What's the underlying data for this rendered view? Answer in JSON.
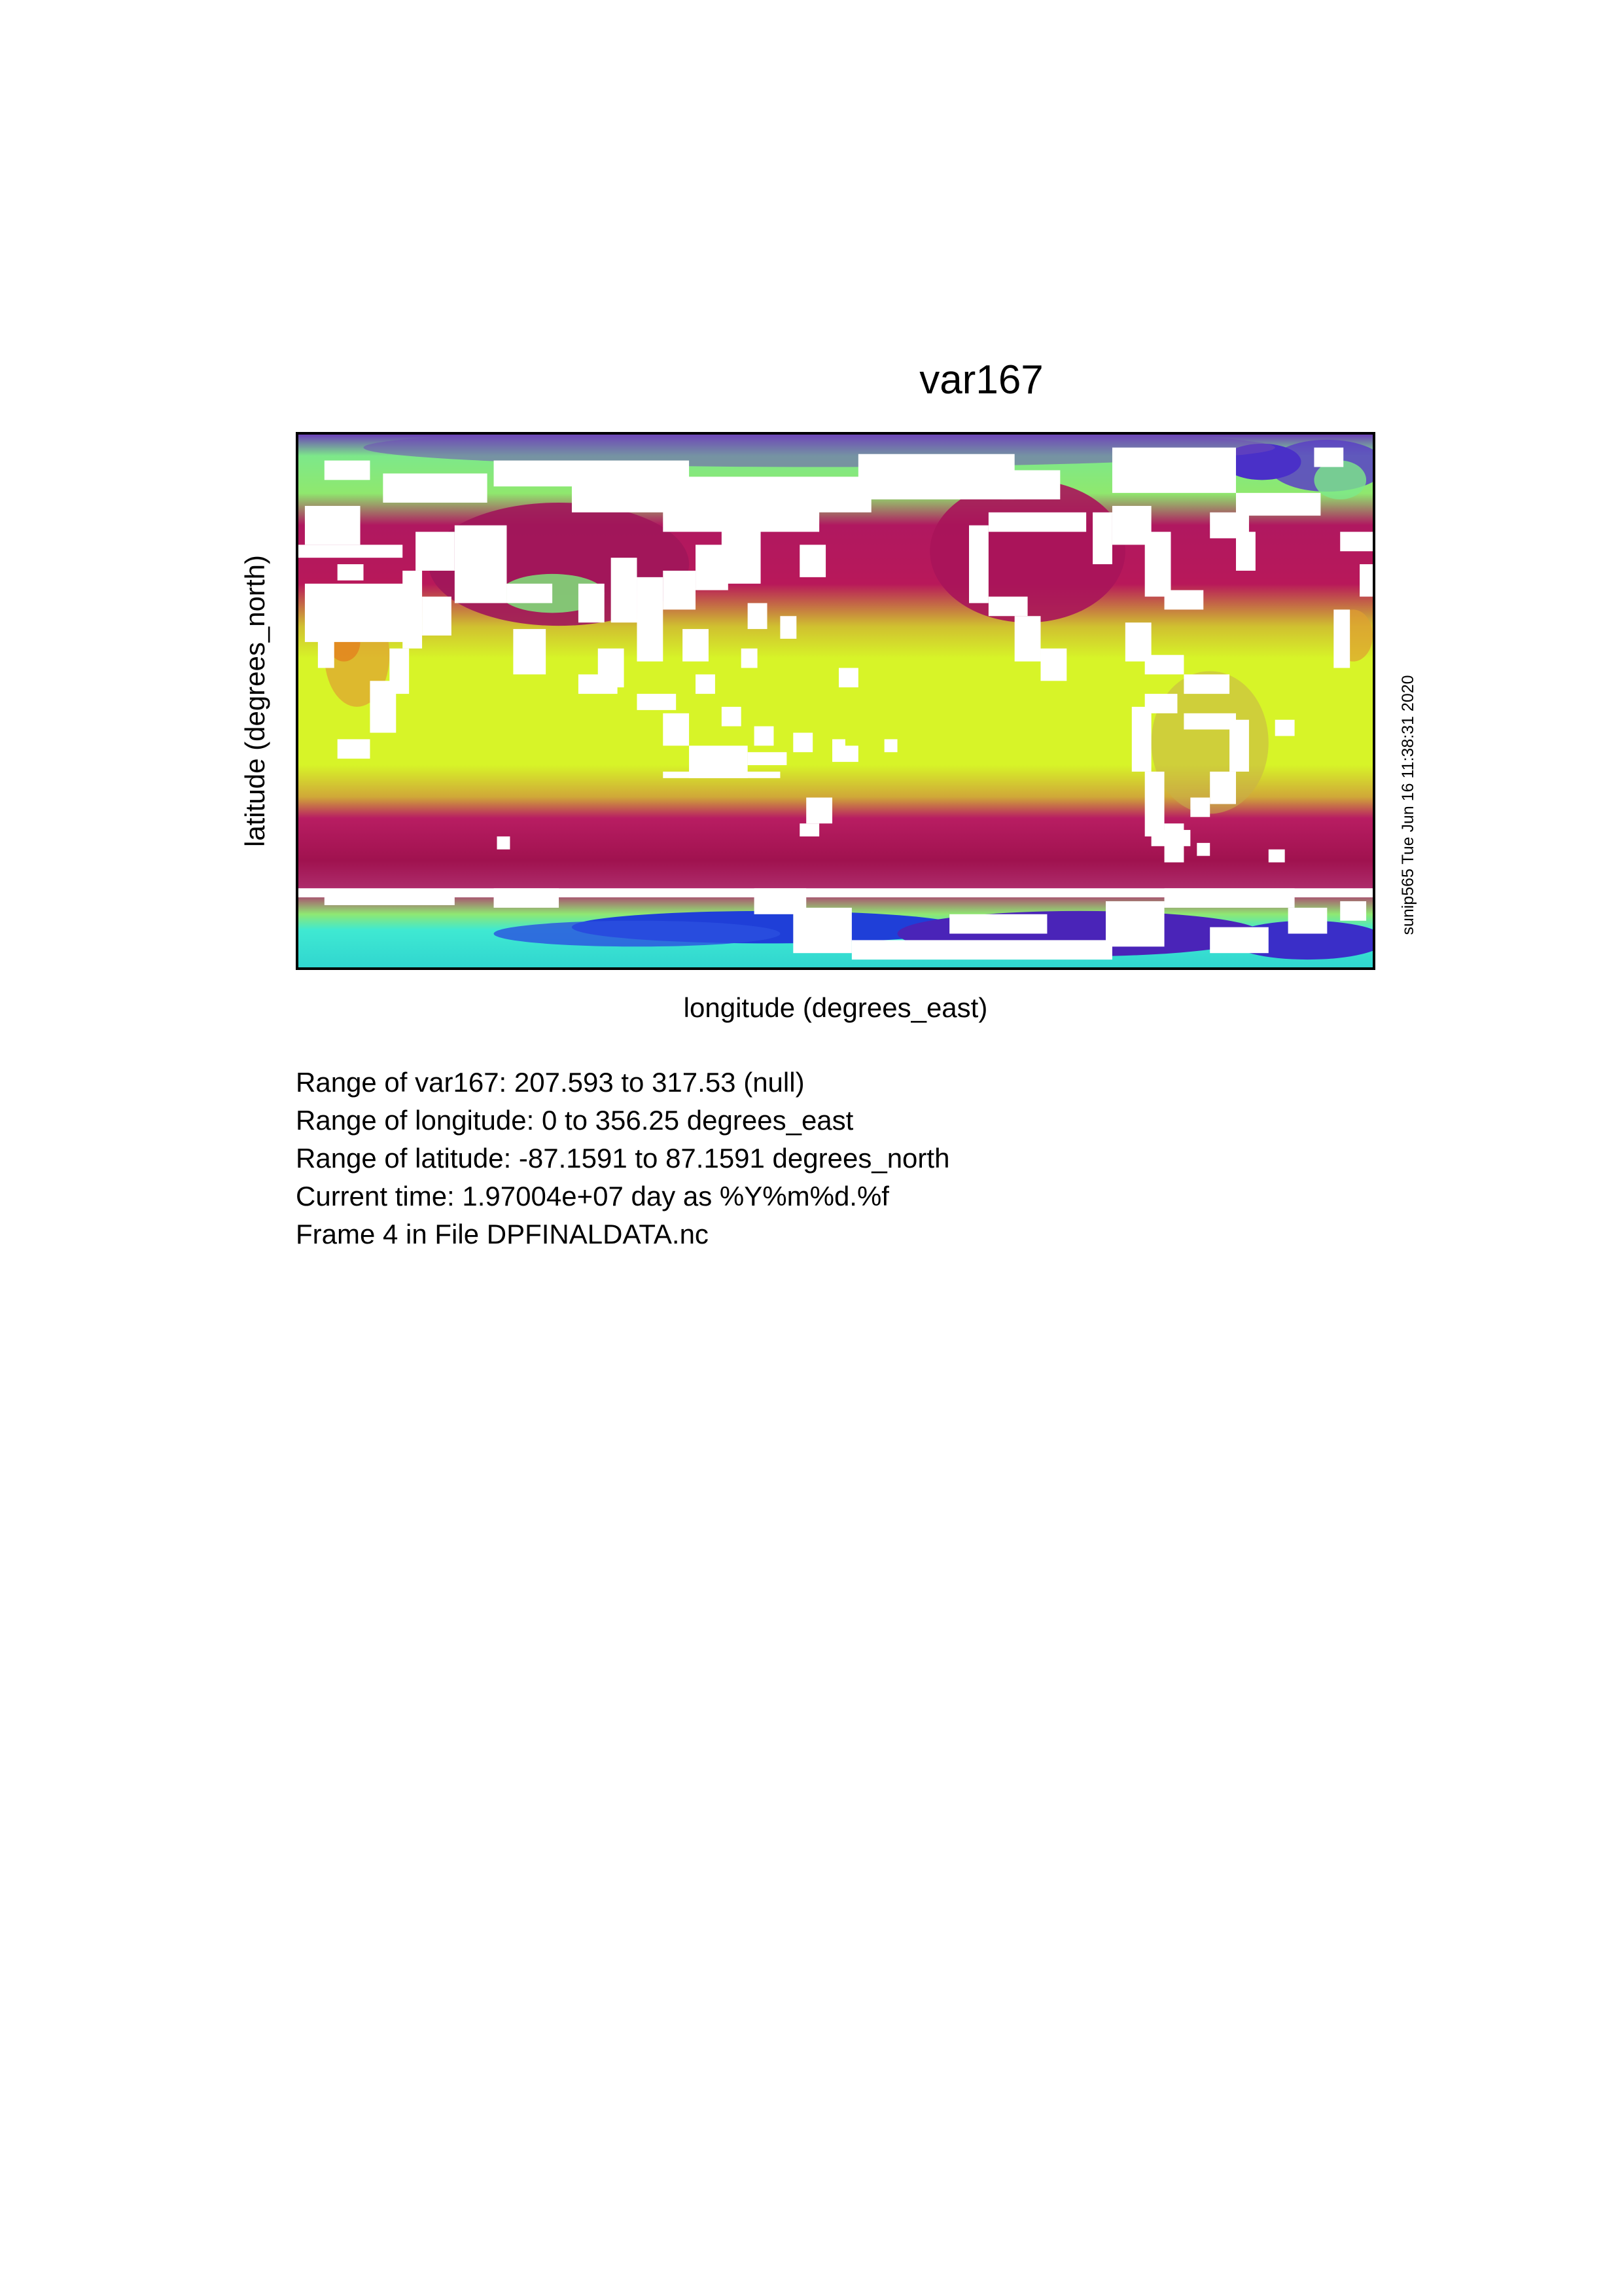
{
  "title": "var167",
  "axes": {
    "xlabel": "longitude (degrees_east)",
    "ylabel": "latitude (degrees_north)"
  },
  "stamp": "sunip565 Tue Jun 16 11:38:31 2020",
  "info": [
    "Range of var167: 207.593 to 317.53 (null)",
    "Range of longitude: 0 to 356.25 degrees_east",
    "Range of latitude: -87.1591 to 87.1591 degrees_north",
    "Current time: 1.97004e+07 day as %Y%m%d.%f",
    "Frame 4 in File DPFINALDATA.nc"
  ],
  "map": {
    "variable": "var167",
    "value_range": [
      207.593,
      317.53
    ],
    "lon_range": [
      0,
      356.25
    ],
    "lat_range": [
      -87.1591,
      87.1591
    ],
    "land_mask_color": "#ffffff",
    "colors": {
      "tropics": "#d7f428",
      "warm_orange": "#e3851f",
      "midlatitude": "#a8145a",
      "subpolar": "#7df07a",
      "polar": "#5a3fc4",
      "antarctic_cyan": "#3fe9d2",
      "antarctic_blue": "#1f3fd8"
    }
  }
}
